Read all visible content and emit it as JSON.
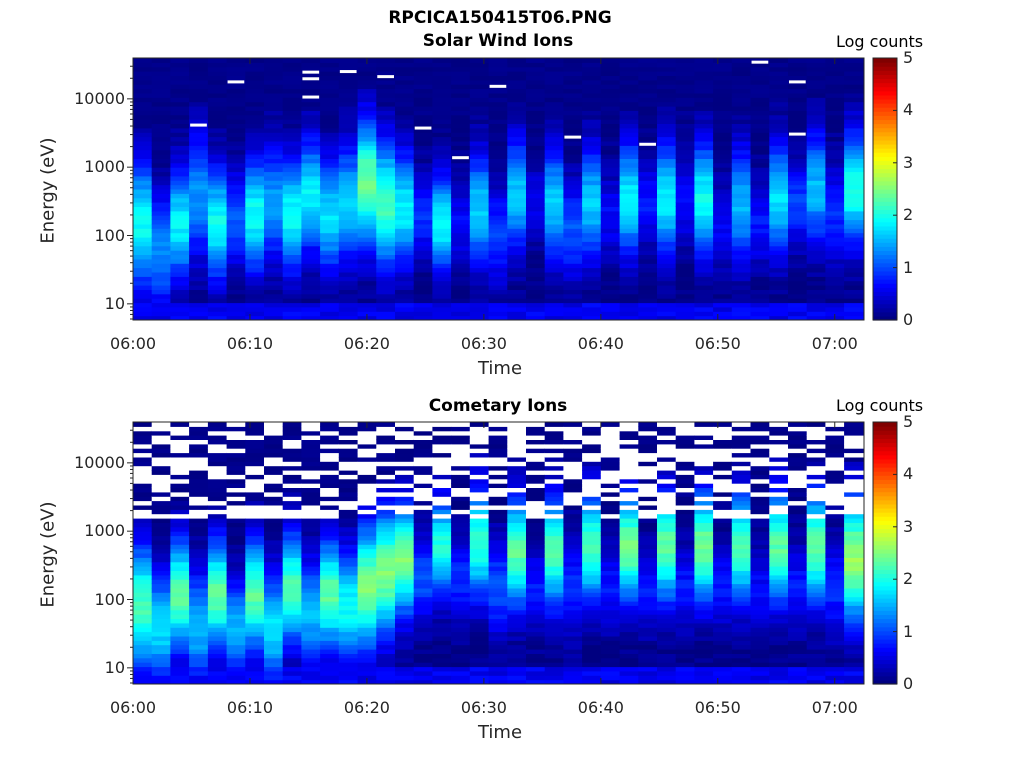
{
  "figure": {
    "title": "RPCICA150415T06.PNG"
  },
  "chart_data": [
    {
      "type": "heatmap",
      "title": "Solar Wind Ions",
      "xlabel": "Time",
      "ylabel": "Energy (eV)",
      "x_ticks": [
        "06:00",
        "06:10",
        "06:20",
        "06:30",
        "06:40",
        "06:50",
        "07:00"
      ],
      "x_tick_minutes": [
        0,
        10,
        20,
        30,
        40,
        50,
        60
      ],
      "xlim_minutes": [
        0,
        62.5
      ],
      "y_scale": "log",
      "y_ticks": [
        "10",
        "100",
        "1000",
        "10000"
      ],
      "y_tick_values": [
        10,
        100,
        1000,
        10000
      ],
      "ylim": [
        5.8,
        39600
      ],
      "colorbar": {
        "label": "Log counts",
        "ticks": [
          "0",
          "1",
          "2",
          "3",
          "4",
          "5"
        ],
        "range": [
          0,
          5
        ],
        "colormap": "jet"
      },
      "columns": [
        {
          "t": 0.0,
          "peak_eV": 150,
          "peak": 1.9,
          "width": 0.9
        },
        {
          "t": 1.6,
          "peak_eV": 60,
          "peak": 1.3,
          "width": 0.8
        },
        {
          "t": 3.2,
          "peak_eV": 150,
          "peak": 1.8,
          "width": 0.8
        },
        {
          "t": 4.8,
          "peak_eV": 400,
          "peak": 1.3,
          "width": 0.9
        },
        {
          "t": 6.4,
          "peak_eV": 150,
          "peak": 1.9,
          "width": 0.8
        },
        {
          "t": 8.0,
          "peak_eV": 180,
          "peak": 1.0,
          "width": 0.7
        },
        {
          "t": 9.6,
          "peak_eV": 200,
          "peak": 1.9,
          "width": 0.8
        },
        {
          "t": 11.2,
          "peak_eV": 300,
          "peak": 1.4,
          "width": 0.8
        },
        {
          "t": 12.8,
          "peak_eV": 200,
          "peak": 1.9,
          "width": 0.8
        },
        {
          "t": 14.4,
          "peak_eV": 400,
          "peak": 1.8,
          "width": 0.8
        },
        {
          "t": 16.0,
          "peak_eV": 200,
          "peak": 1.7,
          "width": 0.8
        },
        {
          "t": 17.6,
          "peak_eV": 300,
          "peak": 1.7,
          "width": 0.8
        },
        {
          "t": 19.2,
          "peak_eV": 600,
          "peak": 2.4,
          "width": 0.9
        },
        {
          "t": 20.8,
          "peak_eV": 300,
          "peak": 2.2,
          "width": 0.9
        },
        {
          "t": 22.4,
          "peak_eV": 250,
          "peak": 1.8,
          "width": 0.8
        },
        {
          "t": 24.0,
          "peak_eV": 200,
          "peak": 0.8,
          "width": 0.6
        },
        {
          "t": 25.6,
          "peak_eV": 150,
          "peak": 1.9,
          "width": 0.7
        },
        {
          "t": 27.2,
          "peak_eV": 150,
          "peak": 0.6,
          "width": 0.6
        },
        {
          "t": 28.8,
          "peak_eV": 250,
          "peak": 1.6,
          "width": 0.8
        },
        {
          "t": 30.4,
          "peak_eV": 100,
          "peak": 0.9,
          "width": 0.7
        },
        {
          "t": 32.0,
          "peak_eV": 400,
          "peak": 1.6,
          "width": 0.8
        },
        {
          "t": 33.6,
          "peak_eV": 300,
          "peak": 0.5,
          "width": 0.6
        },
        {
          "t": 35.2,
          "peak_eV": 300,
          "peak": 1.6,
          "width": 0.8
        },
        {
          "t": 36.8,
          "peak_eV": 120,
          "peak": 1.0,
          "width": 0.7
        },
        {
          "t": 38.4,
          "peak_eV": 300,
          "peak": 1.6,
          "width": 0.8
        },
        {
          "t": 40.0,
          "peak_eV": 200,
          "peak": 0.6,
          "width": 0.6
        },
        {
          "t": 41.6,
          "peak_eV": 350,
          "peak": 1.8,
          "width": 0.8
        },
        {
          "t": 43.2,
          "peak_eV": 300,
          "peak": 0.7,
          "width": 0.6
        },
        {
          "t": 44.8,
          "peak_eV": 350,
          "peak": 1.8,
          "width": 0.8
        },
        {
          "t": 46.4,
          "peak_eV": 300,
          "peak": 0.6,
          "width": 0.6
        },
        {
          "t": 48.0,
          "peak_eV": 350,
          "peak": 1.9,
          "width": 0.8
        },
        {
          "t": 49.6,
          "peak_eV": 150,
          "peak": 0.6,
          "width": 0.6
        },
        {
          "t": 51.2,
          "peak_eV": 300,
          "peak": 1.5,
          "width": 0.8
        },
        {
          "t": 52.8,
          "peak_eV": 150,
          "peak": 0.7,
          "width": 0.6
        },
        {
          "t": 54.4,
          "peak_eV": 350,
          "peak": 1.7,
          "width": 0.8
        },
        {
          "t": 56.0,
          "peak_eV": 300,
          "peak": 0.9,
          "width": 0.6
        },
        {
          "t": 57.6,
          "peak_eV": 500,
          "peak": 1.5,
          "width": 0.8
        },
        {
          "t": 59.2,
          "peak_eV": 200,
          "peak": 0.8,
          "width": 0.7
        },
        {
          "t": 60.8,
          "peak_eV": 500,
          "peak": 2.0,
          "width": 0.8
        }
      ],
      "no_data_marks": [
        {
          "t": 4.8,
          "eV": 4200
        },
        {
          "t": 8.0,
          "eV": 18000
        },
        {
          "t": 14.4,
          "eV": 25000
        },
        {
          "t": 14.4,
          "eV": 20000
        },
        {
          "t": 14.4,
          "eV": 10800
        },
        {
          "t": 17.6,
          "eV": 25500
        },
        {
          "t": 20.8,
          "eV": 21500
        },
        {
          "t": 24.0,
          "eV": 3800
        },
        {
          "t": 27.2,
          "eV": 1400
        },
        {
          "t": 30.4,
          "eV": 15500
        },
        {
          "t": 36.8,
          "eV": 2800
        },
        {
          "t": 43.2,
          "eV": 2200
        },
        {
          "t": 52.8,
          "eV": 35000
        },
        {
          "t": 56.0,
          "eV": 18000
        },
        {
          "t": 56.0,
          "eV": 3100
        }
      ]
    },
    {
      "type": "heatmap",
      "title": "Cometary Ions",
      "xlabel": "Time",
      "ylabel": "Energy (eV)",
      "x_ticks": [
        "06:00",
        "06:10",
        "06:20",
        "06:30",
        "06:40",
        "06:50",
        "07:00"
      ],
      "x_tick_minutes": [
        0,
        10,
        20,
        30,
        40,
        50,
        60
      ],
      "xlim_minutes": [
        0,
        62.5
      ],
      "y_scale": "log",
      "y_ticks": [
        "10",
        "100",
        "1000",
        "10000"
      ],
      "y_tick_values": [
        10,
        100,
        1000,
        10000
      ],
      "ylim": [
        5.8,
        39600
      ],
      "colorbar": {
        "label": "Log counts",
        "ticks": [
          "0",
          "1",
          "2",
          "3",
          "4",
          "5"
        ],
        "range": [
          0,
          5
        ],
        "colormap": "jet"
      },
      "columns": [
        {
          "t": 0.0,
          "peak_eV": 80,
          "peak": 2.2,
          "width": 0.9
        },
        {
          "t": 1.6,
          "peak_eV": 40,
          "peak": 1.7,
          "width": 0.8
        },
        {
          "t": 3.2,
          "peak_eV": 120,
          "peak": 2.3,
          "width": 0.8
        },
        {
          "t": 4.8,
          "peak_eV": 40,
          "peak": 1.5,
          "width": 0.8
        },
        {
          "t": 6.4,
          "peak_eV": 120,
          "peak": 2.3,
          "width": 0.8
        },
        {
          "t": 8.0,
          "peak_eV": 40,
          "peak": 1.5,
          "width": 0.7
        },
        {
          "t": 9.6,
          "peak_eV": 120,
          "peak": 2.3,
          "width": 0.8
        },
        {
          "t": 11.2,
          "peak_eV": 40,
          "peak": 1.7,
          "width": 0.8
        },
        {
          "t": 12.8,
          "peak_eV": 150,
          "peak": 2.2,
          "width": 0.8
        },
        {
          "t": 14.4,
          "peak_eV": 60,
          "peak": 1.5,
          "width": 0.8
        },
        {
          "t": 16.0,
          "peak_eV": 120,
          "peak": 2.3,
          "width": 0.8
        },
        {
          "t": 17.6,
          "peak_eV": 80,
          "peak": 1.9,
          "width": 0.8
        },
        {
          "t": 19.2,
          "peak_eV": 150,
          "peak": 2.5,
          "width": 0.9
        },
        {
          "t": 20.8,
          "peak_eV": 250,
          "peak": 2.5,
          "width": 0.9
        },
        {
          "t": 22.4,
          "peak_eV": 400,
          "peak": 2.5,
          "width": 0.8
        },
        {
          "t": 24.0,
          "peak_eV": 200,
          "peak": 1.0,
          "width": 0.6
        },
        {
          "t": 25.6,
          "peak_eV": 600,
          "peak": 2.0,
          "width": 0.7
        },
        {
          "t": 27.2,
          "peak_eV": 200,
          "peak": 0.8,
          "width": 0.6
        },
        {
          "t": 28.8,
          "peak_eV": 700,
          "peak": 2.1,
          "width": 0.8
        },
        {
          "t": 30.4,
          "peak_eV": 150,
          "peak": 1.0,
          "width": 0.7
        },
        {
          "t": 32.0,
          "peak_eV": 500,
          "peak": 2.3,
          "width": 0.8
        },
        {
          "t": 33.6,
          "peak_eV": 150,
          "peak": 0.7,
          "width": 0.6
        },
        {
          "t": 35.2,
          "peak_eV": 500,
          "peak": 2.2,
          "width": 0.8
        },
        {
          "t": 36.8,
          "peak_eV": 150,
          "peak": 0.8,
          "width": 0.7
        },
        {
          "t": 38.4,
          "peak_eV": 600,
          "peak": 2.2,
          "width": 0.8
        },
        {
          "t": 40.0,
          "peak_eV": 150,
          "peak": 0.7,
          "width": 0.6
        },
        {
          "t": 41.6,
          "peak_eV": 600,
          "peak": 2.4,
          "width": 0.8
        },
        {
          "t": 43.2,
          "peak_eV": 150,
          "peak": 0.7,
          "width": 0.6
        },
        {
          "t": 44.8,
          "peak_eV": 600,
          "peak": 2.3,
          "width": 0.8
        },
        {
          "t": 46.4,
          "peak_eV": 150,
          "peak": 0.7,
          "width": 0.6
        },
        {
          "t": 48.0,
          "peak_eV": 600,
          "peak": 2.4,
          "width": 0.8
        },
        {
          "t": 49.6,
          "peak_eV": 150,
          "peak": 0.7,
          "width": 0.6
        },
        {
          "t": 51.2,
          "peak_eV": 600,
          "peak": 2.2,
          "width": 0.8
        },
        {
          "t": 52.8,
          "peak_eV": 150,
          "peak": 0.6,
          "width": 0.6
        },
        {
          "t": 54.4,
          "peak_eV": 600,
          "peak": 2.3,
          "width": 0.8
        },
        {
          "t": 56.0,
          "peak_eV": 150,
          "peak": 0.7,
          "width": 0.6
        },
        {
          "t": 57.6,
          "peak_eV": 600,
          "peak": 2.3,
          "width": 0.8
        },
        {
          "t": 59.2,
          "peak_eV": 150,
          "peak": 0.8,
          "width": 0.7
        },
        {
          "t": 60.8,
          "peak_eV": 400,
          "peak": 2.6,
          "width": 0.9
        }
      ],
      "no_data_threshold_eV": 1500
    }
  ]
}
